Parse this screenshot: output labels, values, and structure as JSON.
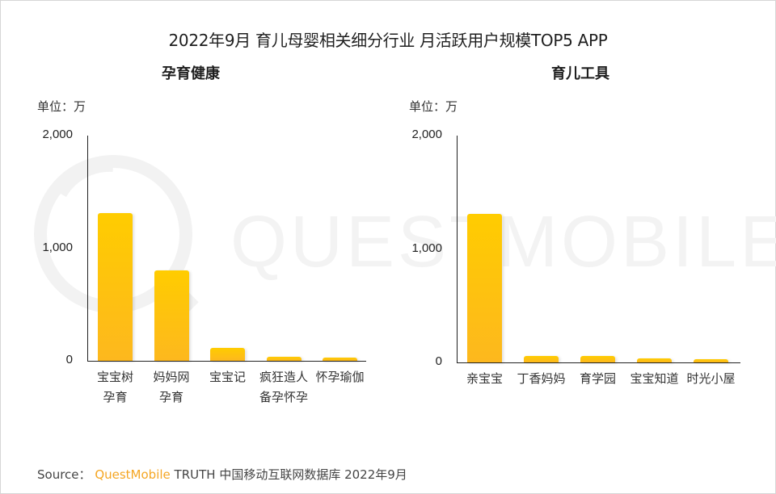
{
  "title": "2022年9月 育儿母婴相关细分行业 月活跃用户规模TOP5 APP",
  "watermark_text": "QUESTMOBILE",
  "colors": {
    "bar_top": "#ffcc00",
    "bar_bottom": "#fdb81e",
    "brand": "#f5a623",
    "axis": "#222222"
  },
  "source": {
    "label": "Source：",
    "brand": "QuestMobile",
    "text": "TRUTH 中国移动互联网数据库 2022年9月"
  },
  "chart_data": [
    {
      "type": "bar",
      "title": "孕育健康",
      "ylabel": "单位：万",
      "xlabel": "",
      "ylim": [
        0,
        2000
      ],
      "yticks": [
        "0",
        "1,000",
        "2,000"
      ],
      "grid": false,
      "categories": [
        "宝宝树孕育",
        "妈妈网孕育",
        "宝宝记",
        "疯狂造人备孕怀孕",
        "怀孕瑜伽"
      ],
      "category_lines": [
        [
          "宝宝树",
          "孕育"
        ],
        [
          "妈妈网",
          "孕育"
        ],
        [
          "宝宝记"
        ],
        [
          "疯狂造人",
          "备孕怀孕"
        ],
        [
          "怀孕瑜伽"
        ]
      ],
      "values": [
        1307,
        800,
        114,
        36,
        29
      ]
    },
    {
      "type": "bar",
      "title": "育儿工具",
      "ylabel": "单位：万",
      "xlabel": "",
      "ylim": [
        0,
        2000
      ],
      "yticks": [
        "0",
        "1,000",
        "2,000"
      ],
      "grid": false,
      "categories": [
        "亲宝宝",
        "丁香妈妈",
        "育学园",
        "宝宝知道",
        "时光小屋"
      ],
      "category_lines": [
        [
          "亲宝宝"
        ],
        [
          "丁香妈妈"
        ],
        [
          "育学园"
        ],
        [
          "宝宝知道"
        ],
        [
          "时光小屋"
        ]
      ],
      "values": [
        1305,
        57,
        57,
        35,
        28
      ]
    }
  ]
}
